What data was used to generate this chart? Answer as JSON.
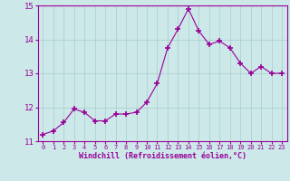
{
  "x": [
    0,
    1,
    2,
    3,
    4,
    5,
    6,
    7,
    8,
    9,
    10,
    11,
    12,
    13,
    14,
    15,
    16,
    17,
    18,
    19,
    20,
    21,
    22,
    23
  ],
  "y": [
    11.2,
    11.3,
    11.55,
    11.95,
    11.85,
    11.6,
    11.6,
    11.8,
    11.8,
    11.85,
    12.15,
    12.7,
    13.75,
    14.3,
    14.9,
    14.25,
    13.85,
    13.95,
    13.75,
    13.3,
    13.0,
    13.2,
    13.0,
    13.0
  ],
  "line_color": "#990099",
  "marker": "+",
  "marker_color": "#990099",
  "bg_color": "#cce8e8",
  "grid_color": "#aacccc",
  "xlabel": "Windchill (Refroidissement éolien,°C)",
  "xlabel_color": "#990099",
  "tick_color": "#990099",
  "spine_color": "#990099",
  "ylim": [
    11.0,
    15.0
  ],
  "yticks": [
    11,
    12,
    13,
    14,
    15
  ],
  "xticks": [
    0,
    1,
    2,
    3,
    4,
    5,
    6,
    7,
    8,
    9,
    10,
    11,
    12,
    13,
    14,
    15,
    16,
    17,
    18,
    19,
    20,
    21,
    22,
    23
  ]
}
